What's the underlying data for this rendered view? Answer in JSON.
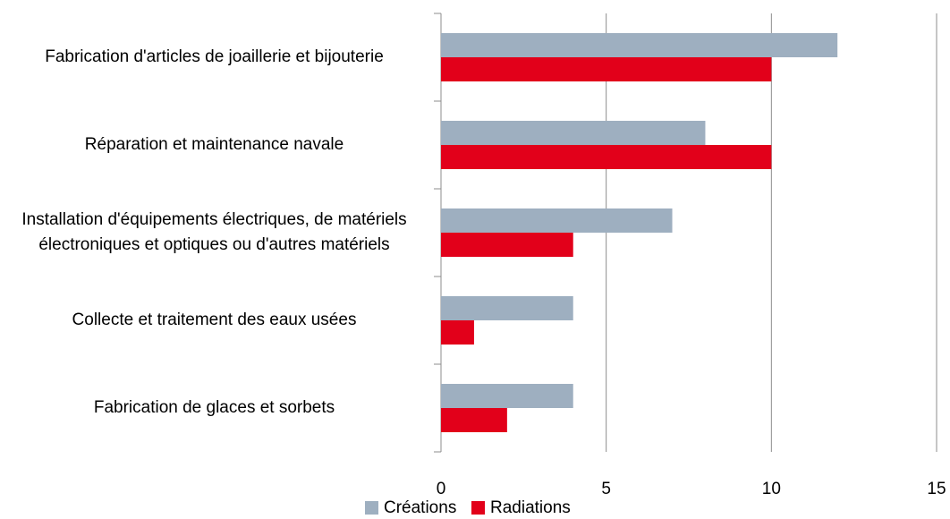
{
  "chart_data": {
    "type": "bar",
    "orientation": "horizontal",
    "categories": [
      "Fabrication d'articles de joaillerie et bijouterie",
      "Réparation et maintenance navale",
      "Installation d'équipements électriques, de matériels électroniques et optiques ou d'autres matériels",
      "Collecte et traitement des eaux usées",
      "Fabrication de glaces et sorbets"
    ],
    "series": [
      {
        "name": "Créations",
        "color": "#9eafc0",
        "values": [
          12,
          8,
          7,
          4,
          4
        ]
      },
      {
        "name": "Radiations",
        "color": "#e2001a",
        "values": [
          10,
          10,
          4,
          1,
          2
        ]
      }
    ],
    "xlim": [
      0,
      15
    ],
    "xticks": [
      0,
      5,
      10,
      15
    ],
    "grid": true,
    "legend": "bottom"
  }
}
